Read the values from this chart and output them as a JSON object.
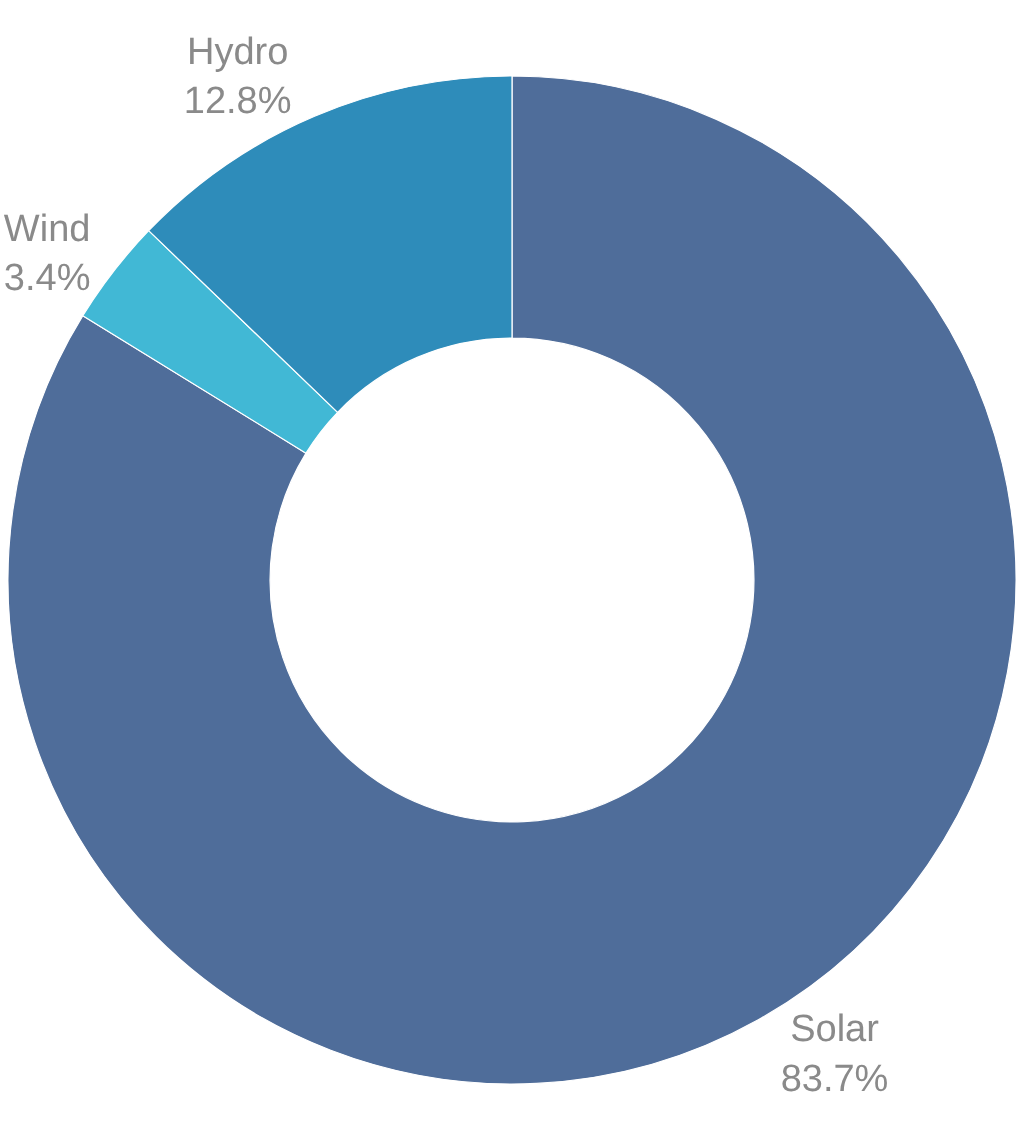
{
  "chart_data": {
    "type": "donut",
    "categories": [
      "Solar",
      "Wind",
      "Hydro"
    ],
    "values": [
      83.7,
      3.4,
      12.8
    ],
    "colors": [
      "#4f6d9a",
      "#41b8d5",
      "#2e8cba"
    ],
    "value_labels": [
      "83.7%",
      "3.4%",
      "12.8%"
    ]
  }
}
